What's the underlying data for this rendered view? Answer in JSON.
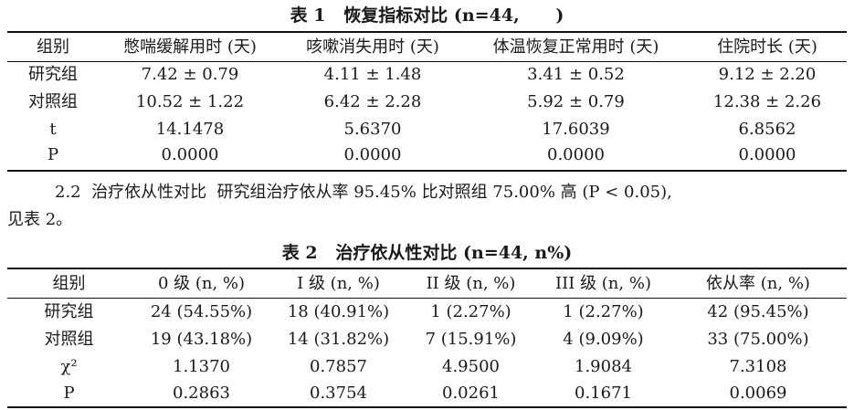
{
  "table1": {
    "caption": "表 1   恢复指标对比 (n=44,      )",
    "headers": [
      "组别",
      "憋喘缓解用时 (天)",
      "咳嗽消失用时 (天)",
      "体温恢复正常用时 (天)",
      "住院时长 (天)"
    ],
    "rows": [
      [
        "研究组",
        "7.42 ± 0.79",
        "4.11 ± 1.48",
        "3.41 ± 0.52",
        "9.12 ± 2.20"
      ],
      [
        "对照组",
        "10.52 ± 1.22",
        "6.42 ± 2.28",
        "5.92 ± 0.79",
        "12.38 ± 2.26"
      ],
      [
        "t",
        "14.1478",
        "5.6370",
        "17.6039",
        "6.8562"
      ],
      [
        "P",
        "0.0000",
        "0.0000",
        "0.0000",
        "0.0000"
      ]
    ]
  },
  "paragraph": {
    "line1": "2.2  治疗依从性对比  研究组治疗依从率 95.45% 比对照组 75.00% 高 (P < 0.05),",
    "line2": "见表 2。"
  },
  "table2": {
    "caption": "表 2   治疗依从性对比 (n=44, n%)",
    "headers": [
      "组别",
      "0 级 (n, %)",
      "I 级 (n, %)",
      "II 级 (n, %)",
      "III 级 (n, %)",
      "依从率 (n, %)"
    ],
    "rows": [
      [
        "研究组",
        "24 (54.55%)",
        "18 (40.91%)",
        "1  (2.27%)",
        "1  (2.27%)",
        "42 (95.45%)"
      ],
      [
        "对照组",
        "19 (43.18%)",
        "14 (31.82%)",
        "7  (15.91%)",
        "4  (9.09%)",
        "33 (75.00%)"
      ],
      [
        "χ²",
        "1.1370",
        "0.7857",
        "4.9500",
        "1.9084",
        "7.3108"
      ],
      [
        "P",
        "0.2863",
        "0.3754",
        "0.0261",
        "0.1671",
        "0.0069"
      ]
    ]
  }
}
